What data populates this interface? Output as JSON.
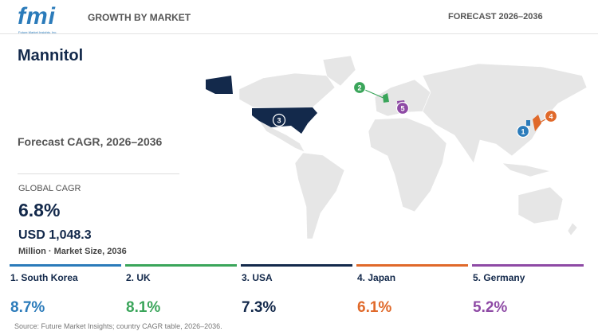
{
  "header": {
    "logo": "fmi",
    "logo_tagline": "Future Market Insights, Inc.",
    "section": "GROWTH BY MARKET",
    "forecast": "FORECAST 2026–2036"
  },
  "title": "Mannitol",
  "subtitle": "Forecast CAGR, 2026–2036",
  "global": {
    "label": "GLOBAL CAGR",
    "cagr": "6.8%",
    "market_size": "USD 1,048.3",
    "market_size_note": "Million · Market Size, 2036"
  },
  "countries": [
    {
      "marker": "1",
      "label": "1. South Korea",
      "cagr": "8.7%",
      "color": "#2b7bba"
    },
    {
      "marker": "2",
      "label": "2. UK",
      "cagr": "8.1%",
      "color": "#3aa55a"
    },
    {
      "marker": "3",
      "label": "3. USA",
      "cagr": "7.3%",
      "color": "#13294b"
    },
    {
      "marker": "4",
      "label": "4. Japan",
      "cagr": "6.1%",
      "color": "#e0692a"
    },
    {
      "marker": "5",
      "label": "5. Germany",
      "cagr": "5.2%",
      "color": "#8e4aa5"
    }
  ],
  "source": "Source: Future Market Insights; country CAGR table, 2026–2036."
}
